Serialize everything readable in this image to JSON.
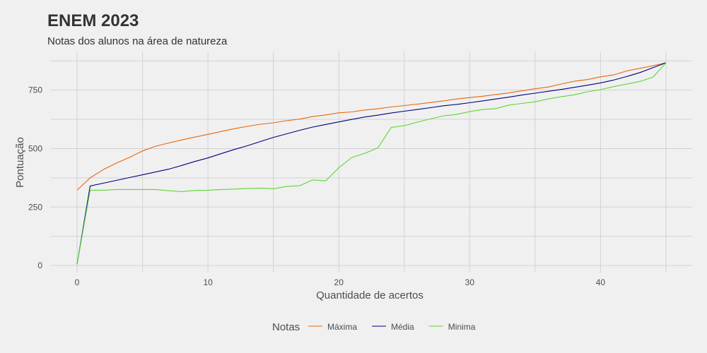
{
  "chart_data": {
    "type": "line",
    "title": "ENEM 2023",
    "subtitle": "Notas dos alunos na área de natureza",
    "xlabel": "Quantidade de acertos",
    "ylabel": "Pontuação",
    "xlim": [
      -2,
      47
    ],
    "ylim": [
      -30,
      915
    ],
    "x_ticks": [
      0,
      10,
      20,
      30,
      40
    ],
    "y_ticks": [
      0,
      250,
      500,
      750
    ],
    "grid": true,
    "legend": {
      "title": "Notas",
      "position": "bottom"
    },
    "x": [
      0,
      1,
      2,
      3,
      4,
      5,
      6,
      7,
      8,
      9,
      10,
      11,
      12,
      13,
      14,
      15,
      16,
      17,
      18,
      19,
      20,
      21,
      22,
      23,
      24,
      25,
      26,
      27,
      28,
      29,
      30,
      31,
      32,
      33,
      34,
      35,
      36,
      37,
      38,
      39,
      40,
      41,
      42,
      43,
      44,
      45
    ],
    "series": [
      {
        "name": "Máxima",
        "color": "#e8670c",
        "values": [
          322,
          375,
          410,
          438,
          462,
          490,
          510,
          524,
          537,
          549,
          561,
          573,
          585,
          595,
          604,
          610,
          619,
          626,
          637,
          644,
          653,
          657,
          665,
          670,
          678,
          684,
          690,
          697,
          704,
          712,
          718,
          724,
          731,
          738,
          747,
          756,
          763,
          776,
          788,
          795,
          807,
          815,
          832,
          843,
          854,
          867
        ]
      },
      {
        "name": "Média",
        "color": "#000080",
        "values": [
          5,
          340,
          352,
          364,
          376,
          388,
          400,
          412,
          428,
          445,
          460,
          478,
          496,
          512,
          530,
          548,
          563,
          578,
          592,
          603,
          614,
          625,
          635,
          643,
          652,
          660,
          667,
          675,
          683,
          689,
          696,
          704,
          712,
          720,
          729,
          737,
          745,
          753,
          762,
          771,
          781,
          793,
          808,
          825,
          846,
          867
        ]
      },
      {
        "name": "Minima",
        "color": "#5fd535",
        "values": [
          5,
          322,
          322,
          325,
          325,
          325,
          325,
          320,
          316,
          321,
          322,
          325,
          327,
          329,
          331,
          328,
          338,
          341,
          366,
          362,
          418,
          462,
          480,
          504,
          590,
          598,
          613,
          627,
          640,
          646,
          658,
          667,
          671,
          686,
          693,
          700,
          712,
          722,
          730,
          743,
          752,
          765,
          776,
          787,
          805,
          867
        ]
      }
    ]
  }
}
